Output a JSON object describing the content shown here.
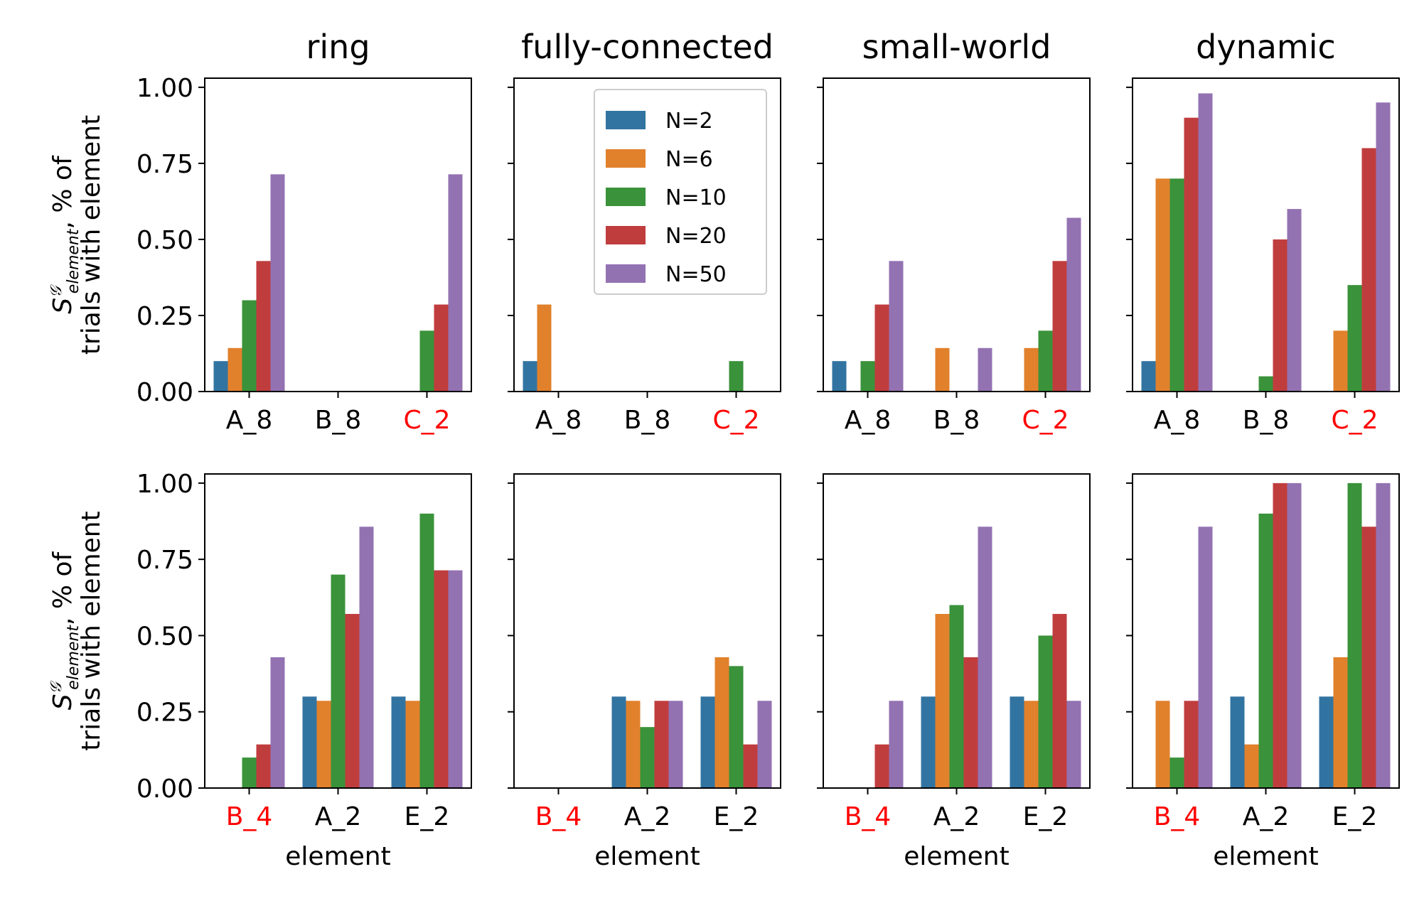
{
  "chart_data": [
    {
      "type": "bar",
      "row": 0,
      "col": 0,
      "title": "ring",
      "categories": [
        "A_8",
        "B_8",
        "C_2"
      ],
      "highlight_categories": [
        "C_2"
      ],
      "ylim": [
        0,
        1.03
      ],
      "series": [
        {
          "name": "N=2",
          "values": [
            0.1,
            0.0,
            0.0
          ]
        },
        {
          "name": "N=6",
          "values": [
            0.143,
            0.0,
            0.0
          ]
        },
        {
          "name": "N=10",
          "values": [
            0.3,
            0.0,
            0.2
          ]
        },
        {
          "name": "N=20",
          "values": [
            0.429,
            0.0,
            0.286
          ]
        },
        {
          "name": "N=50",
          "values": [
            0.714,
            0.0,
            0.714
          ]
        }
      ]
    },
    {
      "type": "bar",
      "row": 0,
      "col": 1,
      "title": "fully-connected",
      "categories": [
        "A_8",
        "B_8",
        "C_2"
      ],
      "highlight_categories": [
        "C_2"
      ],
      "ylim": [
        0,
        1.03
      ],
      "series": [
        {
          "name": "N=2",
          "values": [
            0.1,
            0.0,
            0.0
          ]
        },
        {
          "name": "N=6",
          "values": [
            0.286,
            0.0,
            0.0
          ]
        },
        {
          "name": "N=10",
          "values": [
            0.0,
            0.0,
            0.1
          ]
        },
        {
          "name": "N=20",
          "values": [
            0.0,
            0.0,
            0.0
          ]
        },
        {
          "name": "N=50",
          "values": [
            0.0,
            0.0,
            0.0
          ]
        }
      ]
    },
    {
      "type": "bar",
      "row": 0,
      "col": 2,
      "title": "small-world",
      "categories": [
        "A_8",
        "B_8",
        "C_2"
      ],
      "highlight_categories": [
        "C_2"
      ],
      "ylim": [
        0,
        1.03
      ],
      "series": [
        {
          "name": "N=2",
          "values": [
            0.1,
            0.0,
            0.0
          ]
        },
        {
          "name": "N=6",
          "values": [
            0.0,
            0.143,
            0.143
          ]
        },
        {
          "name": "N=10",
          "values": [
            0.1,
            0.0,
            0.2
          ]
        },
        {
          "name": "N=20",
          "values": [
            0.286,
            0.0,
            0.429
          ]
        },
        {
          "name": "N=50",
          "values": [
            0.429,
            0.143,
            0.571
          ]
        }
      ]
    },
    {
      "type": "bar",
      "row": 0,
      "col": 3,
      "title": "dynamic",
      "categories": [
        "A_8",
        "B_8",
        "C_2"
      ],
      "highlight_categories": [
        "C_2"
      ],
      "ylim": [
        0,
        1.03
      ],
      "series": [
        {
          "name": "N=2",
          "values": [
            0.1,
            0.0,
            0.0
          ]
        },
        {
          "name": "N=6",
          "values": [
            0.7,
            0.0,
            0.2
          ]
        },
        {
          "name": "N=10",
          "values": [
            0.7,
            0.05,
            0.35
          ]
        },
        {
          "name": "N=20",
          "values": [
            0.9,
            0.5,
            0.8
          ]
        },
        {
          "name": "N=50",
          "values": [
            0.98,
            0.6,
            0.95
          ]
        }
      ]
    },
    {
      "type": "bar",
      "row": 1,
      "col": 0,
      "categories": [
        "B_4",
        "A_2",
        "E_2"
      ],
      "highlight_categories": [
        "B_4"
      ],
      "xlabel": "element",
      "ylim": [
        0,
        1.03
      ],
      "series": [
        {
          "name": "N=2",
          "values": [
            0.0,
            0.3,
            0.3
          ]
        },
        {
          "name": "N=6",
          "values": [
            0.0,
            0.286,
            0.286
          ]
        },
        {
          "name": "N=10",
          "values": [
            0.1,
            0.7,
            0.9
          ]
        },
        {
          "name": "N=20",
          "values": [
            0.143,
            0.571,
            0.714
          ]
        },
        {
          "name": "N=50",
          "values": [
            0.429,
            0.857,
            0.714
          ]
        }
      ]
    },
    {
      "type": "bar",
      "row": 1,
      "col": 1,
      "categories": [
        "B_4",
        "A_2",
        "E_2"
      ],
      "highlight_categories": [
        "B_4"
      ],
      "xlabel": "element",
      "ylim": [
        0,
        1.03
      ],
      "series": [
        {
          "name": "N=2",
          "values": [
            0.0,
            0.3,
            0.3
          ]
        },
        {
          "name": "N=6",
          "values": [
            0.0,
            0.286,
            0.429
          ]
        },
        {
          "name": "N=10",
          "values": [
            0.0,
            0.2,
            0.4
          ]
        },
        {
          "name": "N=20",
          "values": [
            0.0,
            0.286,
            0.143
          ]
        },
        {
          "name": "N=50",
          "values": [
            0.0,
            0.286,
            0.286
          ]
        }
      ]
    },
    {
      "type": "bar",
      "row": 1,
      "col": 2,
      "categories": [
        "B_4",
        "A_2",
        "E_2"
      ],
      "highlight_categories": [
        "B_4"
      ],
      "xlabel": "element",
      "ylim": [
        0,
        1.03
      ],
      "series": [
        {
          "name": "N=2",
          "values": [
            0.0,
            0.3,
            0.3
          ]
        },
        {
          "name": "N=6",
          "values": [
            0.0,
            0.571,
            0.286
          ]
        },
        {
          "name": "N=10",
          "values": [
            0.0,
            0.6,
            0.5
          ]
        },
        {
          "name": "N=20",
          "values": [
            0.143,
            0.429,
            0.571
          ]
        },
        {
          "name": "N=50",
          "values": [
            0.286,
            0.857,
            0.286
          ]
        }
      ]
    },
    {
      "type": "bar",
      "row": 1,
      "col": 3,
      "categories": [
        "B_4",
        "A_2",
        "E_2"
      ],
      "highlight_categories": [
        "B_4"
      ],
      "xlabel": "element",
      "ylim": [
        0,
        1.03
      ],
      "series": [
        {
          "name": "N=2",
          "values": [
            0.0,
            0.3,
            0.3
          ]
        },
        {
          "name": "N=6",
          "values": [
            0.286,
            0.143,
            0.429
          ]
        },
        {
          "name": "N=10",
          "values": [
            0.1,
            0.9,
            1.0
          ]
        },
        {
          "name": "N=20",
          "values": [
            0.286,
            1.0,
            0.857
          ]
        },
        {
          "name": "N=50",
          "values": [
            0.857,
            1.0,
            1.0
          ]
        }
      ]
    }
  ],
  "shared": {
    "yticks": [
      "0.00",
      "0.25",
      "0.50",
      "0.75",
      "1.00"
    ],
    "ytick_values": [
      0,
      0.25,
      0.5,
      0.75,
      1.0
    ],
    "ylabel_symbol": "S",
    "ylabel_superscript": "𝒢",
    "ylabel_subscript": "element",
    "ylabel_line1_suffix": ", % of",
    "ylabel_line2": "trials with element",
    "series_colors": [
      "#3274a1",
      "#e1812c",
      "#3a923a",
      "#c03d3e",
      "#9372b2"
    ],
    "highlight_color": "#ff0000",
    "legend": {
      "placement": "upper-right of fully-connected panel",
      "entries": [
        "N=2",
        "N=6",
        "N=10",
        "N=20",
        "N=50"
      ]
    }
  }
}
